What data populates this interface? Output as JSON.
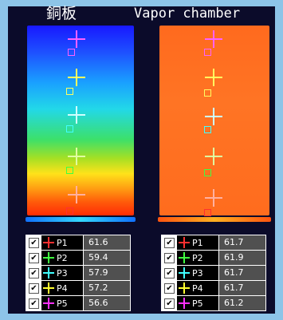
{
  "titles": {
    "left": "銅板",
    "right": "Vapor chamber"
  },
  "colors": {
    "P1": "#ff3030",
    "P2": "#40ff40",
    "P3": "#40ffff",
    "P4": "#ffff30",
    "P5": "#ff30ff"
  },
  "copper_table": [
    {
      "label": "P1",
      "value": "61.6"
    },
    {
      "label": "P2",
      "value": "59.4"
    },
    {
      "label": "P3",
      "value": "57.9"
    },
    {
      "label": "P4",
      "value": "57.2"
    },
    {
      "label": "P5",
      "value": "56.6"
    }
  ],
  "vc_table": [
    {
      "label": "P1",
      "value": "61.7"
    },
    {
      "label": "P2",
      "value": "61.9"
    },
    {
      "label": "P3",
      "value": "61.7"
    },
    {
      "label": "P4",
      "value": "61.7"
    },
    {
      "label": "P5",
      "value": "61.2"
    }
  ],
  "checkbox_mark": "✔"
}
